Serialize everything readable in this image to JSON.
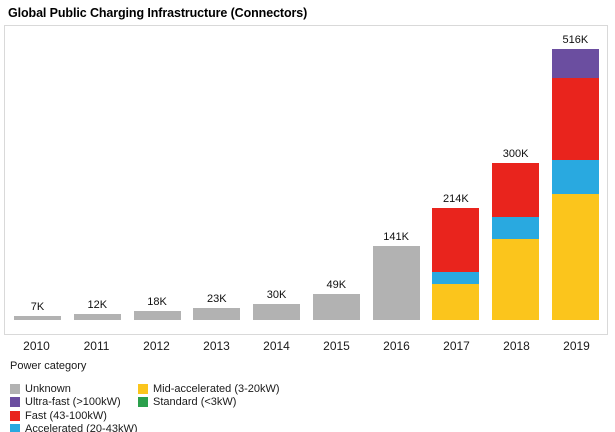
{
  "title": "Global Public Charging Infrastructure (Connectors)",
  "legend": {
    "title": "Power category",
    "columns": [
      [
        {
          "label": "Unknown",
          "color": "#b2b2b2"
        },
        {
          "label": "Ultra-fast (>100kW)",
          "color": "#6b4ea0"
        },
        {
          "label": "Fast (43-100kW)",
          "color": "#e9241d"
        },
        {
          "label": "Accelerated (20-43kW)",
          "color": "#29a9e0"
        }
      ],
      [
        {
          "label": "Mid-accelerated (3-20kW)",
          "color": "#fbc51c"
        },
        {
          "label": "Standard (<3kW)",
          "color": "#2ba04c"
        }
      ]
    ]
  },
  "chart_data": {
    "type": "bar",
    "stacked": true,
    "title": "Global Public Charging Infrastructure (Connectors)",
    "xlabel": "",
    "ylabel": "",
    "value_suffix": "K",
    "unit_note": "values in thousands of connectors",
    "ylim": [
      0,
      516
    ],
    "grid": false,
    "legend_position": "bottom",
    "categories": [
      "2010",
      "2011",
      "2012",
      "2013",
      "2014",
      "2015",
      "2016",
      "2017",
      "2018",
      "2019"
    ],
    "totals_labels": [
      "7K",
      "12K",
      "18K",
      "23K",
      "30K",
      "49K",
      "141K",
      "214K",
      "300K",
      "516K"
    ],
    "totals_values": [
      7,
      12,
      18,
      23,
      30,
      49,
      141,
      214,
      300,
      516
    ],
    "series": [
      {
        "name": "Standard (<3kW)",
        "color": "#2ba04c",
        "values": [
          0,
          0,
          0,
          0,
          0,
          0,
          0,
          0,
          0,
          0
        ]
      },
      {
        "name": "Mid-accelerated (3-20kW)",
        "color": "#fbc51c",
        "values": [
          0,
          0,
          0,
          0,
          0,
          0,
          0,
          69,
          155,
          240
        ]
      },
      {
        "name": "Accelerated (20-43kW)",
        "color": "#29a9e0",
        "values": [
          0,
          0,
          0,
          0,
          0,
          0,
          0,
          23,
          42,
          65
        ]
      },
      {
        "name": "Fast (43-100kW)",
        "color": "#e9241d",
        "values": [
          0,
          0,
          0,
          0,
          0,
          0,
          0,
          122,
          103,
          156
        ]
      },
      {
        "name": "Ultra-fast (>100kW)",
        "color": "#6b4ea0",
        "values": [
          0,
          0,
          0,
          0,
          0,
          0,
          0,
          0,
          0,
          55
        ]
      },
      {
        "name": "Unknown",
        "color": "#b2b2b2",
        "values": [
          7,
          12,
          18,
          23,
          30,
          49,
          141,
          0,
          0,
          0
        ]
      }
    ]
  }
}
